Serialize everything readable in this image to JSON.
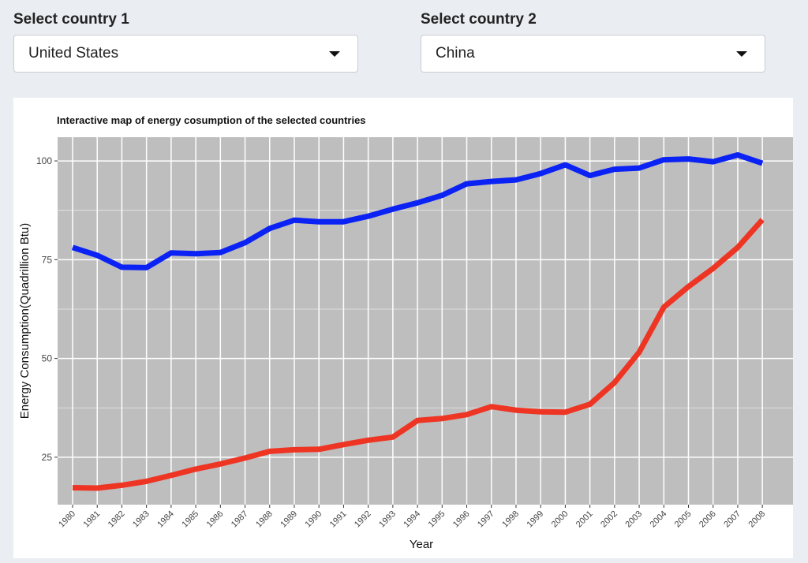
{
  "selectors": {
    "country1": {
      "label": "Select country 1",
      "value": "United States"
    },
    "country2": {
      "label": "Select country 2",
      "value": "China"
    }
  },
  "chart_data": {
    "type": "line",
    "title": "Interactive map of energy cosumption of the selected countries",
    "xlabel": "Year",
    "ylabel": "Energy Consumption(Quadrillion Btu)",
    "x": [
      "1980",
      "1981",
      "1982",
      "1983",
      "1984",
      "1985",
      "1986",
      "1987",
      "1988",
      "1989",
      "1990",
      "1991",
      "1992",
      "1993",
      "1994",
      "1995",
      "1996",
      "1997",
      "1998",
      "1999",
      "2000",
      "2001",
      "2002",
      "2003",
      "2004",
      "2005",
      "2006",
      "2007",
      "2008"
    ],
    "ylim": [
      13,
      106
    ],
    "yticks": [
      25,
      50,
      75,
      100
    ],
    "grid": true,
    "series": [
      {
        "color": "#0b22f5",
        "values": [
          78.1,
          76.1,
          73.1,
          73.0,
          76.7,
          76.5,
          76.8,
          79.3,
          82.9,
          85.0,
          84.6,
          84.6,
          86.0,
          87.8,
          89.4,
          91.3,
          94.2,
          94.8,
          95.2,
          96.8,
          99.0,
          96.3,
          97.9,
          98.2,
          100.3,
          100.5,
          99.8,
          101.5,
          99.4
        ]
      },
      {
        "color": "#ee3524",
        "values": [
          17.3,
          17.2,
          17.9,
          18.9,
          20.4,
          22.0,
          23.3,
          24.8,
          26.5,
          26.9,
          27.0,
          28.2,
          29.3,
          30.1,
          34.3,
          34.8,
          35.8,
          37.8,
          36.9,
          36.5,
          36.4,
          38.4,
          43.9,
          51.6,
          63.0,
          68.2,
          72.8,
          78.1,
          85.1
        ]
      }
    ]
  }
}
